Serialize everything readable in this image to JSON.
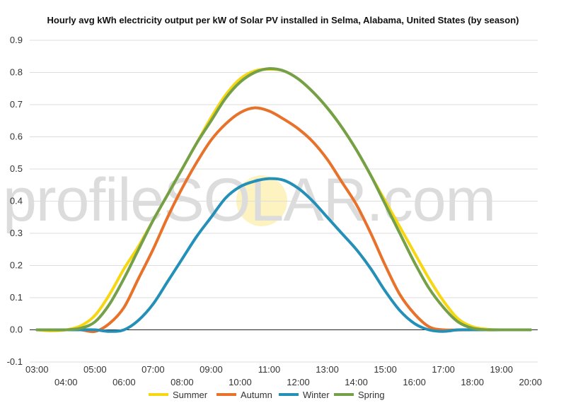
{
  "chart_data": {
    "type": "line",
    "title": "Hourly avg kWh electricity output per kW of Solar PV installed in Selma, Alabama, United States (by season)",
    "watermark": {
      "before": "profile",
      "sun_letter": "S",
      "after": "OLAR.com",
      "sun_color": "#fdf3c0"
    },
    "x": [
      3,
      4,
      5,
      6,
      7,
      8,
      9,
      10,
      11,
      12,
      13,
      14,
      15,
      16,
      17,
      18,
      19,
      20
    ],
    "x_tick_labels": [
      "03:00",
      "04:00",
      "05:00",
      "06:00",
      "07:00",
      "08:00",
      "09:00",
      "10:00",
      "11:00",
      "12:00",
      "13:00",
      "14:00",
      "15:00",
      "16:00",
      "17:00",
      "18:00",
      "19:00",
      "20:00"
    ],
    "xlim": [
      2.75,
      20.25
    ],
    "ylim": [
      -0.1,
      0.9
    ],
    "y_ticks": [
      "-0.1",
      "0.0",
      "0.1",
      "0.2",
      "0.3",
      "0.4",
      "0.5",
      "0.6",
      "0.7",
      "0.8",
      "0.9"
    ],
    "grid": true,
    "legend_position": "bottom",
    "series": [
      {
        "name": "Summer",
        "color": "#f7d612",
        "points": [
          [
            3,
            0
          ],
          [
            3.5,
            -0.003
          ],
          [
            4,
            0
          ],
          [
            4.5,
            0.012
          ],
          [
            5,
            0.045
          ],
          [
            5.5,
            0.11
          ],
          [
            6,
            0.19
          ],
          [
            6.5,
            0.26
          ],
          [
            7,
            0.34
          ],
          [
            7.5,
            0.42
          ],
          [
            8,
            0.5
          ],
          [
            8.5,
            0.58
          ],
          [
            9,
            0.66
          ],
          [
            9.5,
            0.73
          ],
          [
            10,
            0.78
          ],
          [
            10.5,
            0.805
          ],
          [
            11,
            0.81
          ],
          [
            11.5,
            0.805
          ],
          [
            12,
            0.78
          ],
          [
            12.5,
            0.74
          ],
          [
            13,
            0.69
          ],
          [
            13.5,
            0.63
          ],
          [
            14,
            0.56
          ],
          [
            14.5,
            0.48
          ],
          [
            15,
            0.4
          ],
          [
            15.5,
            0.32
          ],
          [
            16,
            0.24
          ],
          [
            16.5,
            0.16
          ],
          [
            17,
            0.09
          ],
          [
            17.5,
            0.035
          ],
          [
            18,
            0.01
          ],
          [
            18.5,
            0.002
          ],
          [
            19,
            0
          ],
          [
            20,
            0
          ]
        ]
      },
      {
        "name": "Autumn",
        "color": "#e8722a",
        "points": [
          [
            3,
            0
          ],
          [
            3.5,
            0
          ],
          [
            4,
            0
          ],
          [
            4.5,
            0
          ],
          [
            5,
            -0.005
          ],
          [
            5.5,
            0.02
          ],
          [
            6,
            0.07
          ],
          [
            6.5,
            0.16
          ],
          [
            7,
            0.25
          ],
          [
            7.5,
            0.35
          ],
          [
            8,
            0.44
          ],
          [
            8.5,
            0.52
          ],
          [
            9,
            0.59
          ],
          [
            9.5,
            0.64
          ],
          [
            10,
            0.675
          ],
          [
            10.5,
            0.69
          ],
          [
            11,
            0.68
          ],
          [
            11.5,
            0.655
          ],
          [
            12,
            0.625
          ],
          [
            12.5,
            0.585
          ],
          [
            13,
            0.53
          ],
          [
            13.5,
            0.46
          ],
          [
            14,
            0.39
          ],
          [
            14.5,
            0.3
          ],
          [
            15,
            0.2
          ],
          [
            15.5,
            0.11
          ],
          [
            16,
            0.05
          ],
          [
            16.5,
            0.01
          ],
          [
            17,
            0
          ],
          [
            18,
            0
          ],
          [
            19,
            0
          ],
          [
            20,
            0
          ]
        ]
      },
      {
        "name": "Winter",
        "color": "#2490b8",
        "points": [
          [
            3,
            0
          ],
          [
            3.5,
            0
          ],
          [
            4,
            0
          ],
          [
            4.5,
            0
          ],
          [
            5,
            0
          ],
          [
            5.5,
            -0.005
          ],
          [
            6,
            0
          ],
          [
            6.5,
            0.03
          ],
          [
            7,
            0.08
          ],
          [
            7.5,
            0.15
          ],
          [
            8,
            0.22
          ],
          [
            8.5,
            0.29
          ],
          [
            9,
            0.35
          ],
          [
            9.5,
            0.41
          ],
          [
            10,
            0.445
          ],
          [
            10.5,
            0.462
          ],
          [
            11,
            0.47
          ],
          [
            11.5,
            0.465
          ],
          [
            12,
            0.44
          ],
          [
            12.5,
            0.4
          ],
          [
            13,
            0.35
          ],
          [
            13.5,
            0.3
          ],
          [
            14,
            0.25
          ],
          [
            14.5,
            0.19
          ],
          [
            15,
            0.12
          ],
          [
            15.5,
            0.06
          ],
          [
            16,
            0.02
          ],
          [
            16.5,
            0
          ],
          [
            17,
            -0.005
          ],
          [
            17.5,
            0
          ],
          [
            18,
            0
          ],
          [
            19,
            0
          ],
          [
            20,
            0
          ]
        ]
      },
      {
        "name": "Spring",
        "color": "#74a04a",
        "points": [
          [
            3,
            0
          ],
          [
            3.5,
            0
          ],
          [
            4,
            0
          ],
          [
            4.5,
            0.005
          ],
          [
            5,
            0.025
          ],
          [
            5.5,
            0.08
          ],
          [
            6,
            0.16
          ],
          [
            6.5,
            0.25
          ],
          [
            7,
            0.34
          ],
          [
            7.5,
            0.42
          ],
          [
            8,
            0.5
          ],
          [
            8.5,
            0.58
          ],
          [
            9,
            0.65
          ],
          [
            9.5,
            0.72
          ],
          [
            10,
            0.77
          ],
          [
            10.5,
            0.8
          ],
          [
            11,
            0.812
          ],
          [
            11.5,
            0.805
          ],
          [
            12,
            0.78
          ],
          [
            12.5,
            0.74
          ],
          [
            13,
            0.69
          ],
          [
            13.5,
            0.63
          ],
          [
            14,
            0.56
          ],
          [
            14.5,
            0.48
          ],
          [
            15,
            0.39
          ],
          [
            15.5,
            0.3
          ],
          [
            16,
            0.21
          ],
          [
            16.5,
            0.13
          ],
          [
            17,
            0.07
          ],
          [
            17.5,
            0.025
          ],
          [
            18,
            0.005
          ],
          [
            18.5,
            0
          ],
          [
            19,
            0
          ],
          [
            20,
            0
          ]
        ]
      }
    ]
  }
}
